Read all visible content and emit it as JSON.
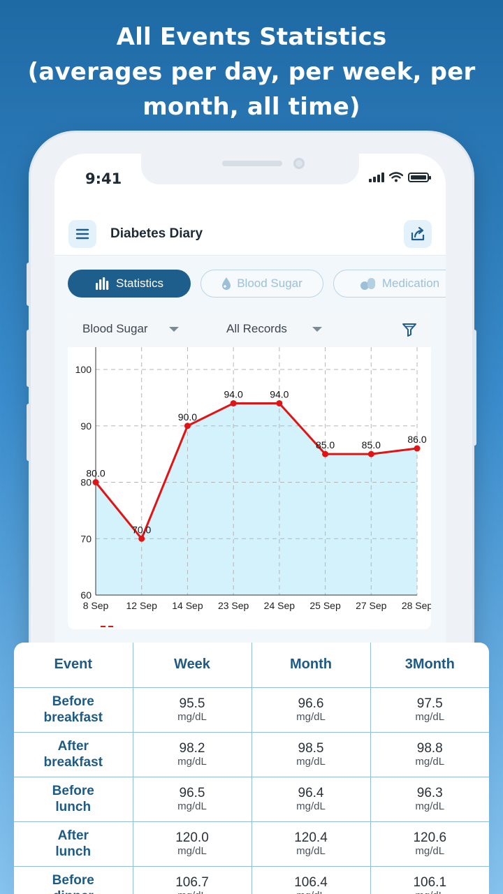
{
  "headline": {
    "line1": "All Events Statistics",
    "line2": "(averages per day, per week, per",
    "line3": "month, all time)"
  },
  "status_bar": {
    "time": "9:41"
  },
  "app": {
    "title": "Diabetes Diary",
    "menu_icon": "hamburger-icon",
    "share_icon": "share-icon"
  },
  "tabs": [
    {
      "label": "Statistics",
      "icon": "bar-chart-icon",
      "active": true
    },
    {
      "label": "Blood Sugar",
      "icon": "drop-icon",
      "active": false
    },
    {
      "label": "Medication",
      "icon": "pills-icon",
      "active": false
    }
  ],
  "filters": {
    "type": "Blood Sugar",
    "range": "All Records",
    "filter_icon": "funnel-icon"
  },
  "chart_data": {
    "type": "area",
    "categories": [
      "8 Sep",
      "12 Sep",
      "14 Sep",
      "23 Sep",
      "24 Sep",
      "25 Sep",
      "27 Sep",
      "28 Sep"
    ],
    "series": [
      {
        "values": [
          80.0,
          70.0,
          90.0,
          94.0,
          94.0,
          85.0,
          85.0,
          86.0
        ]
      }
    ],
    "data_labels": [
      "80.0",
      "70.0",
      "90.0",
      "94.0",
      "94.0",
      "85.0",
      "85.0",
      "86.0"
    ],
    "ylim": [
      60,
      100
    ],
    "yticks": [
      "60",
      "70",
      "80",
      "90",
      "100"
    ],
    "grid": true,
    "colors": {
      "line": "#e01414",
      "fill": "#d4f2fc",
      "grid": "#b5b5b5"
    }
  },
  "table": {
    "headers": [
      "Event",
      "Week",
      "Month",
      "3Month"
    ],
    "unit": "mg/dL",
    "rows": [
      {
        "event_l1": "Before",
        "event_l2": "breakfast",
        "week": "95.5",
        "month": "96.6",
        "month3": "97.5"
      },
      {
        "event_l1": "After",
        "event_l2": "breakfast",
        "week": "98.2",
        "month": "98.5",
        "month3": "98.8"
      },
      {
        "event_l1": "Before",
        "event_l2": "lunch",
        "week": "96.5",
        "month": "96.4",
        "month3": "96.3"
      },
      {
        "event_l1": "After",
        "event_l2": "lunch",
        "week": "120.0",
        "month": "120.4",
        "month3": "120.6"
      },
      {
        "event_l1": "Before",
        "event_l2": "dinner",
        "week": "106.7",
        "month": "106.4",
        "month3": "106.1"
      }
    ]
  }
}
